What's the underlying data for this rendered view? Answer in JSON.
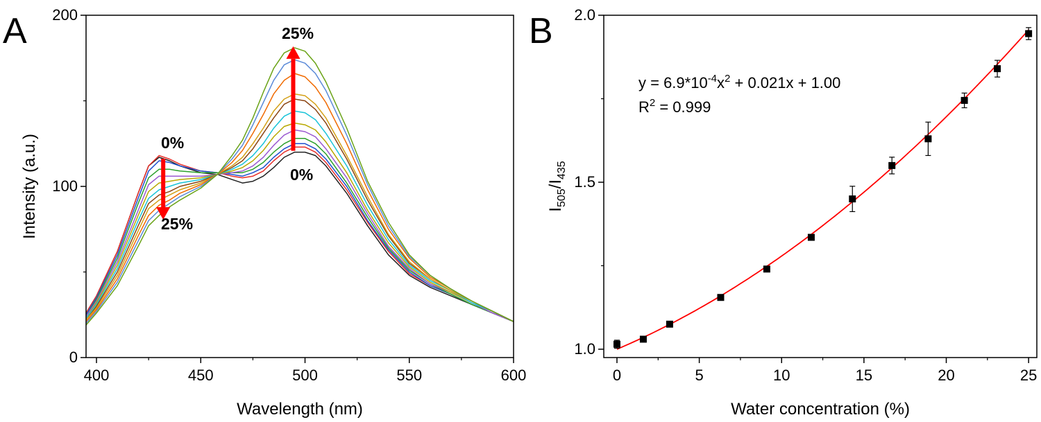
{
  "chart_data": [
    {
      "panel_label": "A",
      "type": "line",
      "xlabel": "Wavelength (nm)",
      "ylabel": "Intensity (a.u.)",
      "xlim": [
        395,
        600
      ],
      "ylim": [
        0,
        200
      ],
      "xticks": [
        400,
        450,
        500,
        550,
        600
      ],
      "yticks": [
        0,
        100,
        200
      ],
      "grid": false,
      "annotations": {
        "peak1_start": "0%",
        "peak1_end": "25%",
        "peak2_start": "0%",
        "peak2_end": "25%"
      },
      "x": [
        395,
        400,
        410,
        420,
        425,
        430,
        435,
        440,
        450,
        458,
        465,
        470,
        475,
        480,
        485,
        490,
        495,
        500,
        505,
        510,
        520,
        530,
        540,
        550,
        560,
        570,
        580,
        590,
        600
      ],
      "series": [
        {
          "color": "#222222",
          "values": [
            26,
            36,
            62,
            96,
            112,
            117,
            115,
            112,
            108,
            107,
            104,
            102,
            103,
            106,
            111,
            117,
            120,
            120,
            118,
            112,
            96,
            77,
            60,
            48,
            41,
            36,
            31,
            26,
            21
          ]
        },
        {
          "color": "#e8302a",
          "values": [
            26,
            36,
            62,
            96,
            112,
            118,
            116,
            113,
            109,
            108,
            106,
            105,
            106,
            109,
            115,
            120,
            123,
            123,
            120,
            114,
            98,
            79,
            62,
            49,
            42,
            37,
            31,
            26,
            21
          ]
        },
        {
          "color": "#1f4fcf",
          "values": [
            25,
            35,
            60,
            93,
            109,
            115,
            114,
            112,
            109,
            108,
            107,
            106,
            108,
            111,
            117,
            122,
            125,
            125,
            122,
            116,
            100,
            80,
            63,
            50,
            42,
            37,
            31,
            26,
            21
          ]
        },
        {
          "color": "#2ca02c",
          "values": [
            24,
            34,
            58,
            90,
            105,
            110,
            110,
            109,
            108,
            108,
            108,
            108,
            110,
            114,
            120,
            125,
            128,
            128,
            125,
            119,
            102,
            82,
            64,
            51,
            43,
            37,
            31,
            26,
            21
          ]
        },
        {
          "color": "#9b59d0",
          "values": [
            24,
            33,
            56,
            86,
            101,
            106,
            106,
            106,
            106,
            107,
            108,
            109,
            112,
            117,
            124,
            130,
            133,
            132,
            129,
            122,
            105,
            84,
            65,
            52,
            43,
            38,
            32,
            26,
            21
          ]
        },
        {
          "color": "#b8a800",
          "values": [
            23,
            32,
            54,
            83,
            97,
            102,
            103,
            104,
            105,
            107,
            109,
            111,
            115,
            121,
            129,
            135,
            137,
            136,
            133,
            126,
            108,
            86,
            67,
            53,
            44,
            38,
            32,
            27,
            21
          ]
        },
        {
          "color": "#19c3d8",
          "values": [
            23,
            31,
            52,
            80,
            93,
            98,
            100,
            102,
            104,
            107,
            110,
            113,
            118,
            125,
            134,
            141,
            144,
            143,
            139,
            131,
            112,
            89,
            69,
            54,
            45,
            39,
            32,
            27,
            21
          ]
        },
        {
          "color": "#8b4513",
          "values": [
            22,
            30,
            50,
            77,
            90,
            95,
            97,
            100,
            103,
            107,
            111,
            115,
            122,
            131,
            140,
            148,
            151,
            150,
            145,
            137,
            116,
            92,
            71,
            55,
            46,
            39,
            33,
            27,
            21
          ]
        },
        {
          "color": "#d4a017",
          "values": [
            22,
            29,
            48,
            74,
            87,
            92,
            95,
            98,
            102,
            107,
            112,
            117,
            125,
            134,
            144,
            151,
            154,
            153,
            148,
            140,
            118,
            94,
            72,
            56,
            46,
            39,
            33,
            27,
            21
          ]
        },
        {
          "color": "#f06a00",
          "values": [
            21,
            28,
            46,
            71,
            83,
            89,
            92,
            96,
            101,
            107,
            114,
            121,
            131,
            142,
            154,
            162,
            166,
            164,
            158,
            149,
            125,
            98,
            75,
            58,
            47,
            40,
            33,
            27,
            21
          ]
        },
        {
          "color": "#5b8ad8",
          "values": [
            20,
            27,
            44,
            68,
            80,
            86,
            90,
            94,
            100,
            107,
            116,
            124,
            136,
            149,
            162,
            171,
            174,
            172,
            166,
            156,
            130,
            101,
            77,
            59,
            48,
            40,
            33,
            27,
            21
          ]
        },
        {
          "color": "#6aa317",
          "values": [
            19,
            26,
            42,
            65,
            77,
            83,
            88,
            92,
            99,
            107,
            118,
            127,
            140,
            155,
            169,
            178,
            181,
            179,
            172,
            161,
            134,
            103,
            79,
            60,
            48,
            40,
            33,
            27,
            21
          ]
        }
      ]
    },
    {
      "panel_label": "B",
      "type": "scatter",
      "xlabel": "Water concentration (%)",
      "ylabel": "I505/I435",
      "ylabel_parts": {
        "main1": "I",
        "sub1": "505",
        "slash": "/I",
        "sub2": "435"
      },
      "xlim": [
        -0.8,
        25.5
      ],
      "ylim": [
        0.975,
        2.0
      ],
      "xticks": [
        0,
        5,
        10,
        15,
        20,
        25
      ],
      "yticks": [
        1.0,
        1.5,
        2.0
      ],
      "yticklabels": [
        "1.0",
        "1.5",
        "2.0"
      ],
      "grid": false,
      "equation": {
        "prefix": "y = 6.9*10",
        "exp1": "-4",
        "mid": "x",
        "exp2": "2",
        "suffix": " + 0.021x + 1.00"
      },
      "r2": {
        "prefix": "R",
        "exp": "2",
        "suffix": " = 0.999"
      },
      "fit": {
        "a": 0.00069,
        "b": 0.021,
        "c": 1.0,
        "color": "#ff0000"
      },
      "points": [
        {
          "x": 0,
          "y": 1.015,
          "err": 0.012
        },
        {
          "x": 1.6,
          "y": 1.03,
          "err": 0.005
        },
        {
          "x": 3.2,
          "y": 1.075,
          "err": 0.007
        },
        {
          "x": 6.3,
          "y": 1.155,
          "err": 0.005
        },
        {
          "x": 9.1,
          "y": 1.24,
          "err": 0.005
        },
        {
          "x": 11.8,
          "y": 1.335,
          "err": 0.005
        },
        {
          "x": 14.3,
          "y": 1.45,
          "err": 0.038
        },
        {
          "x": 16.7,
          "y": 1.55,
          "err": 0.025
        },
        {
          "x": 18.9,
          "y": 1.63,
          "err": 0.05
        },
        {
          "x": 21.1,
          "y": 1.745,
          "err": 0.022
        },
        {
          "x": 23.1,
          "y": 1.84,
          "err": 0.025
        },
        {
          "x": 25.0,
          "y": 1.945,
          "err": 0.018
        }
      ]
    }
  ]
}
